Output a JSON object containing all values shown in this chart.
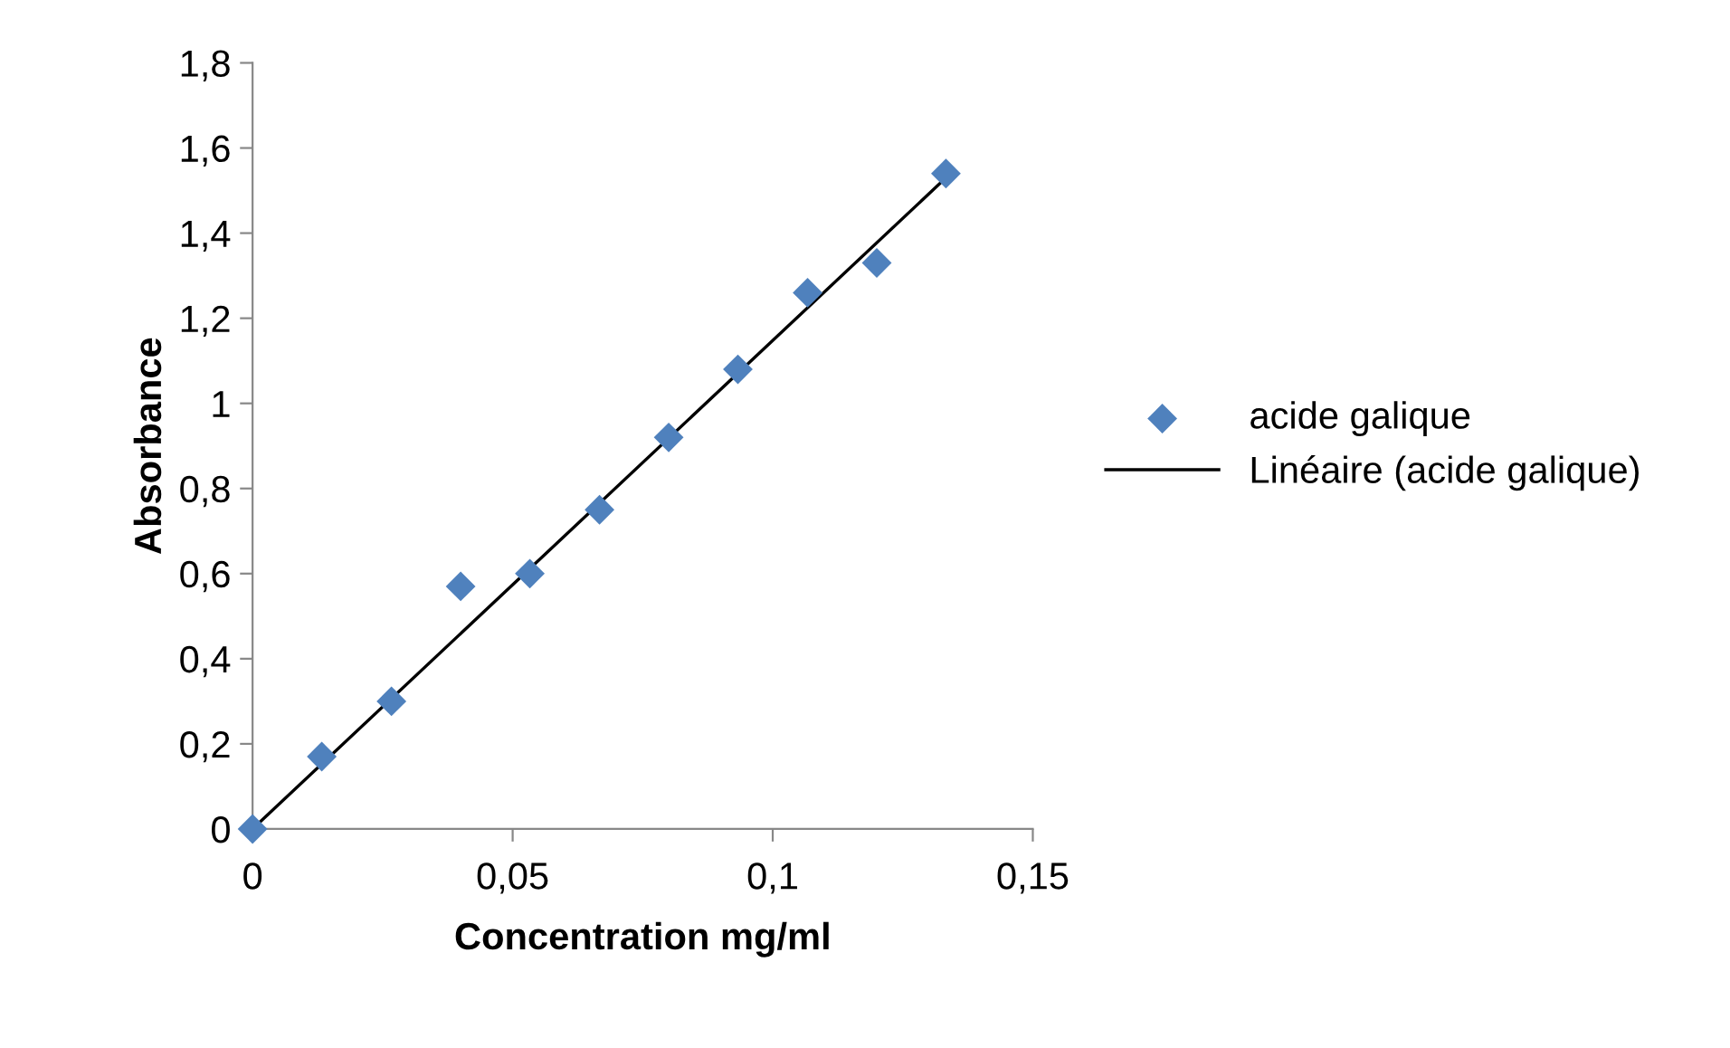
{
  "chart_data": {
    "type": "scatter",
    "xlabel": "Concentration mg/ml",
    "ylabel": "Absorbance",
    "series": [
      {
        "name": "acide galique",
        "marker": "diamond",
        "color": "#4f81bd",
        "x": [
          0,
          0.0133,
          0.0267,
          0.04,
          0.0533,
          0.0667,
          0.08,
          0.0933,
          0.1067,
          0.12,
          0.1333
        ],
        "values": [
          0,
          0.17,
          0.3,
          0.57,
          0.6,
          0.75,
          0.92,
          1.08,
          1.26,
          1.33,
          1.54
        ]
      },
      {
        "name": "Linéaire (acide galique)",
        "type": "line",
        "marker": "none",
        "line_style": "solid",
        "color": "#000000",
        "x": [
          0,
          0.1333
        ],
        "values": [
          0,
          1.53
        ]
      }
    ],
    "xlim": [
      0,
      0.15
    ],
    "xticks": [
      0,
      {
        "value": 0.05,
        "label": "0,05"
      },
      {
        "value": 0.1,
        "label": "0,1"
      },
      {
        "value": 0.15,
        "label": "0,15"
      }
    ],
    "ylim": [
      0,
      1.8
    ],
    "yticks": [
      0,
      {
        "value": 0.2,
        "label": "0,2"
      },
      {
        "value": 0.4,
        "label": "0,4"
      },
      {
        "value": 0.6,
        "label": "0,6"
      },
      {
        "value": 0.8,
        "label": "0,8"
      },
      1,
      {
        "value": 1.2,
        "label": "1,2"
      },
      {
        "value": 1.4,
        "label": "1,4"
      },
      {
        "value": 1.6,
        "label": "1,6"
      },
      {
        "value": 1.8,
        "label": "1,8"
      }
    ],
    "grid": false,
    "legend": "right"
  }
}
